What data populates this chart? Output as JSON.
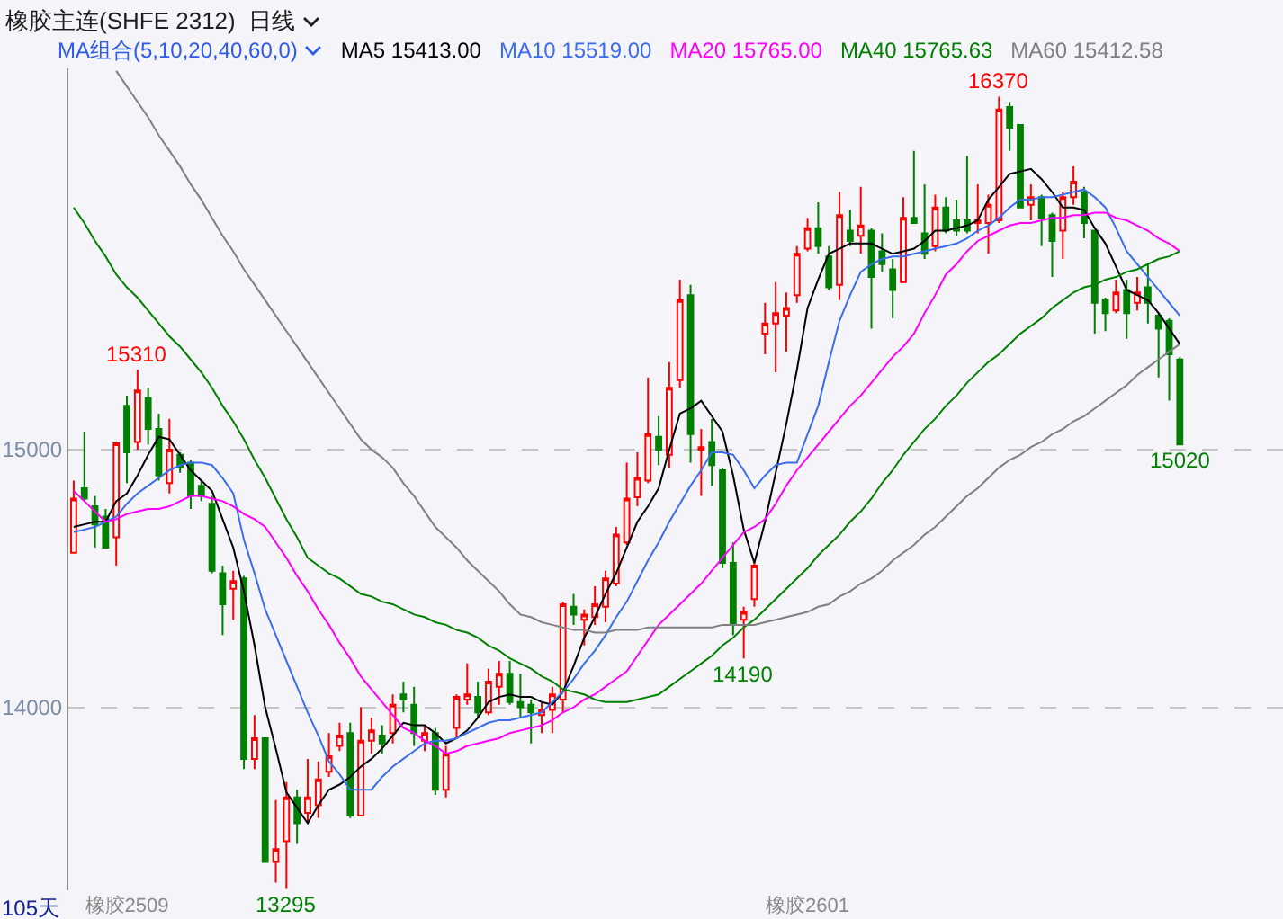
{
  "chart_data": {
    "type": "candlestick",
    "title": "橡胶主连(SHFE 2312)",
    "subtitle": "日线",
    "legend_title": "MA组合(5,10,20,40,60,0)",
    "legend": "top",
    "grid": "y",
    "categories": [
      null,
      null,
      null,
      null,
      null,
      "橡胶2509",
      null,
      null,
      null,
      null,
      null,
      null,
      null,
      null,
      null,
      null,
      null,
      null,
      null,
      null,
      null,
      null,
      null,
      null,
      null,
      null,
      null,
      null,
      null,
      null,
      null,
      null,
      null,
      null,
      null,
      null,
      null,
      null,
      null,
      null,
      null,
      null,
      null,
      null,
      null,
      null,
      null,
      null,
      null,
      null,
      null,
      null,
      null,
      null,
      null,
      null,
      null,
      null,
      null,
      null,
      null,
      null,
      null,
      null,
      null,
      null,
      null,
      null,
      null,
      "橡胶2601",
      null,
      null,
      null,
      null,
      null,
      null,
      null,
      null,
      null,
      null,
      null,
      null,
      null,
      null,
      null,
      null,
      null,
      null,
      null,
      null,
      null,
      null,
      null,
      null,
      null,
      null,
      null,
      null,
      null,
      null,
      null,
      null,
      null,
      null,
      null
    ],
    "ylim": [
      13290,
      16480
    ],
    "yticks": [
      14000,
      15000
    ],
    "ohlc": [
      [
        14600,
        14880,
        14600,
        14810
      ],
      [
        14850,
        15070,
        14800,
        14810
      ],
      [
        14780,
        14820,
        14620,
        14710
      ],
      [
        14740,
        14770,
        14620,
        14620
      ],
      [
        14660,
        15030,
        14550,
        15025
      ],
      [
        15170,
        15210,
        14870,
        14990
      ],
      [
        15030,
        15310,
        15000,
        15230
      ],
      [
        15200,
        15240,
        15020,
        15080
      ],
      [
        15080,
        15140,
        14880,
        14900
      ],
      [
        14870,
        15120,
        14830,
        15000
      ],
      [
        14980,
        14990,
        14910,
        14930
      ],
      [
        14950,
        14960,
        14770,
        14820
      ],
      [
        14860,
        14880,
        14800,
        14820
      ],
      [
        14790,
        14820,
        14520,
        14530
      ],
      [
        14520,
        14550,
        14280,
        14400
      ],
      [
        14460,
        14530,
        14340,
        14490
      ],
      [
        14500,
        14510,
        13760,
        13800
      ],
      [
        13800,
        13970,
        13760,
        13880
      ],
      [
        13880,
        13880,
        13400,
        13400
      ],
      [
        13400,
        13640,
        13320,
        13450
      ],
      [
        13480,
        13710,
        13295,
        13650
      ],
      [
        13650,
        13680,
        13470,
        13550
      ],
      [
        13590,
        13800,
        13550,
        13650
      ],
      [
        13620,
        13790,
        13570,
        13720
      ],
      [
        13750,
        13900,
        13730,
        13810
      ],
      [
        13850,
        13940,
        13830,
        13890
      ],
      [
        13900,
        13940,
        13570,
        13580
      ],
      [
        13580,
        14000,
        13580,
        13870
      ],
      [
        13870,
        13960,
        13820,
        13910
      ],
      [
        13890,
        13930,
        13820,
        13860
      ],
      [
        13900,
        14050,
        13860,
        14010
      ],
      [
        14050,
        14100,
        13980,
        14030
      ],
      [
        14010,
        14080,
        13850,
        13900
      ],
      [
        13870,
        13930,
        13830,
        13900
      ],
      [
        13900,
        13920,
        13660,
        13680
      ],
      [
        13680,
        13850,
        13650,
        13820
      ],
      [
        13920,
        14050,
        13880,
        14040
      ],
      [
        14030,
        14170,
        14010,
        14050
      ],
      [
        14040,
        14100,
        13960,
        13980
      ],
      [
        13980,
        14150,
        13970,
        14100
      ],
      [
        14080,
        14180,
        14010,
        14130
      ],
      [
        14130,
        14180,
        14010,
        14020
      ],
      [
        14020,
        14130,
        13960,
        14000
      ],
      [
        14010,
        14030,
        13860,
        13980
      ],
      [
        13970,
        14020,
        13900,
        13990
      ],
      [
        13990,
        14080,
        13900,
        14050
      ],
      [
        14030,
        14410,
        13980,
        14400
      ],
      [
        14390,
        14440,
        14320,
        14360
      ],
      [
        14340,
        14380,
        14240,
        14360
      ],
      [
        14350,
        14470,
        14320,
        14400
      ],
      [
        14390,
        14530,
        14330,
        14500
      ],
      [
        14480,
        14700,
        14470,
        14670
      ],
      [
        14640,
        14950,
        14630,
        14810
      ],
      [
        14815,
        14990,
        14780,
        14890
      ],
      [
        14880,
        15280,
        14870,
        15060
      ],
      [
        15050,
        15130,
        14940,
        15000
      ],
      [
        14980,
        15340,
        14930,
        15240
      ],
      [
        15270,
        15660,
        15240,
        15580
      ],
      [
        15600,
        15640,
        14950,
        15060
      ],
      [
        15000,
        15080,
        14820,
        15010
      ],
      [
        15030,
        15120,
        14860,
        14940
      ],
      [
        14920,
        14930,
        14540,
        14560
      ],
      [
        14560,
        14640,
        14280,
        14320
      ],
      [
        14340,
        14390,
        14190,
        14370
      ],
      [
        14420,
        14570,
        14390,
        14550
      ],
      [
        15450,
        15570,
        15370,
        15490
      ],
      [
        15490,
        15650,
        15300,
        15530
      ],
      [
        15520,
        15610,
        15380,
        15550
      ],
      [
        15600,
        15790,
        15570,
        15760
      ],
      [
        15780,
        15900,
        15770,
        15860
      ],
      [
        15860,
        15960,
        15760,
        15790
      ],
      [
        15750,
        15790,
        15620,
        15630
      ],
      [
        15640,
        16000,
        15580,
        15910
      ],
      [
        15850,
        15930,
        15790,
        15810
      ],
      [
        15830,
        16020,
        15760,
        15870
      ],
      [
        15850,
        15860,
        15470,
        15670
      ],
      [
        15770,
        15840,
        15690,
        15720
      ],
      [
        15700,
        15740,
        15510,
        15620
      ],
      [
        15650,
        15980,
        15650,
        15900
      ],
      [
        15900,
        16160,
        15880,
        15880
      ],
      [
        15840,
        16030,
        15740,
        15760
      ],
      [
        15790,
        15990,
        15770,
        15940
      ],
      [
        15940,
        15980,
        15840,
        15850
      ],
      [
        15890,
        15970,
        15830,
        15850
      ],
      [
        15890,
        16140,
        15840,
        15850
      ],
      [
        15880,
        16030,
        15840,
        15890
      ],
      [
        15880,
        15990,
        15760,
        15950
      ],
      [
        15890,
        16370,
        15880,
        16320
      ],
      [
        16330,
        16350,
        16160,
        16250
      ],
      [
        16260,
        16260,
        15940,
        15940
      ],
      [
        15950,
        16030,
        15890,
        15980
      ],
      [
        15980,
        15990,
        15790,
        15900
      ],
      [
        15910,
        15920,
        15670,
        15810
      ],
      [
        15850,
        16000,
        15740,
        15980
      ],
      [
        15980,
        16100,
        15950,
        16040
      ],
      [
        16000,
        16020,
        15820,
        15880
      ],
      [
        15850,
        15850,
        15450,
        15570
      ],
      [
        15580,
        15590,
        15460,
        15530
      ],
      [
        15540,
        15660,
        15530,
        15610
      ],
      [
        15620,
        15660,
        15430,
        15530
      ],
      [
        15570,
        15670,
        15540,
        15610
      ],
      [
        15630,
        15720,
        15490,
        15570
      ],
      [
        15520,
        15530,
        15280,
        15470
      ],
      [
        15500,
        15510,
        15190,
        15370
      ],
      [
        15350,
        15360,
        15020,
        15020
      ]
    ],
    "colors": [
      "#ff0000",
      "#008000",
      "#008000",
      "#008000",
      "#ff0000",
      "#008000",
      "#ff0000",
      "#008000",
      "#008000",
      "#ff0000",
      "#008000",
      "#008000",
      "#008000",
      "#008000",
      "#008000",
      "#ff0000",
      "#008000",
      "#ff0000",
      "#008000",
      "#ff0000",
      "#ff0000",
      "#008000",
      "#ff0000",
      "#ff0000",
      "#ff0000",
      "#ff0000",
      "#008000",
      "#ff0000",
      "#ff0000",
      "#008000",
      "#ff0000",
      "#008000",
      "#008000",
      "#ff0000",
      "#008000",
      "#ff0000",
      "#ff0000",
      "#ff0000",
      "#008000",
      "#ff0000",
      "#ff0000",
      "#008000",
      "#008000",
      "#008000",
      "#ff0000",
      "#ff0000",
      "#ff0000",
      "#008000",
      "#ff0000",
      "#ff0000",
      "#ff0000",
      "#ff0000",
      "#ff0000",
      "#ff0000",
      "#ff0000",
      "#008000",
      "#ff0000",
      "#ff0000",
      "#008000",
      "#ff0000",
      "#008000",
      "#008000",
      "#008000",
      "#ff0000",
      "#ff0000",
      "#ff0000",
      "#ff0000",
      "#ff0000",
      "#ff0000",
      "#ff0000",
      "#008000",
      "#008000",
      "#ff0000",
      "#008000",
      "#ff0000",
      "#008000",
      "#008000",
      "#008000",
      "#ff0000",
      "#008000",
      "#008000",
      "#ff0000",
      "#008000",
      "#008000",
      "#008000",
      "#ff0000",
      "#ff0000",
      "#ff0000",
      "#008000",
      "#008000",
      "#ff0000",
      "#008000",
      "#008000",
      "#ff0000",
      "#ff0000",
      "#008000",
      "#008000",
      "#008000",
      "#ff0000",
      "#008000",
      "#ff0000",
      "#008000",
      "#008000",
      "#008000",
      "#008000"
    ],
    "series": [
      {
        "name": "MA5 15413.00",
        "type": "line",
        "color": "#000000",
        "values": [
          14700,
          14710,
          14720,
          14720,
          14800,
          14830,
          14900,
          14980,
          15050,
          15040,
          14980,
          14920,
          14880,
          14840,
          14730,
          14620,
          14450,
          14240,
          14000,
          13840,
          13670,
          13610,
          13550,
          13620,
          13680,
          13700,
          13730,
          13770,
          13800,
          13840,
          13890,
          13940,
          13930,
          13930,
          13900,
          13860,
          13880,
          13910,
          13960,
          14020,
          14040,
          14050,
          14040,
          14040,
          14020,
          14010,
          14060,
          14160,
          14270,
          14350,
          14440,
          14520,
          14620,
          14720,
          14780,
          14850,
          15000,
          15140,
          15160,
          15190,
          15130,
          15070,
          14900,
          14690,
          14560,
          14720,
          14910,
          15100,
          15310,
          15550,
          15660,
          15760,
          15780,
          15800,
          15800,
          15800,
          15780,
          15760,
          15770,
          15780,
          15810,
          15850,
          15850,
          15860,
          15870,
          15890,
          15970,
          16020,
          16070,
          16080,
          16090,
          16050,
          16000,
          15940,
          15940,
          15930,
          15860,
          15800,
          15710,
          15620,
          15600,
          15580,
          15530,
          15470,
          15410
        ]
      },
      {
        "name": "MA10 15519.00",
        "type": "line",
        "color": "#3a6df0",
        "values": [
          14680,
          14690,
          14700,
          14720,
          14740,
          14790,
          14830,
          14860,
          14890,
          14920,
          14940,
          14950,
          14950,
          14940,
          14890,
          14830,
          14650,
          14520,
          14380,
          14280,
          14180,
          14080,
          13980,
          13890,
          13790,
          13740,
          13680,
          13680,
          13680,
          13730,
          13770,
          13800,
          13830,
          13860,
          13870,
          13870,
          13880,
          13900,
          13920,
          13940,
          13950,
          13950,
          13960,
          13970,
          13980,
          14020,
          14060,
          14110,
          14170,
          14220,
          14280,
          14350,
          14410,
          14490,
          14570,
          14640,
          14720,
          14790,
          14860,
          14920,
          14990,
          14990,
          14980,
          14920,
          14850,
          14900,
          14940,
          14950,
          14950,
          15060,
          15170,
          15340,
          15500,
          15600,
          15690,
          15720,
          15740,
          15750,
          15750,
          15760,
          15770,
          15780,
          15790,
          15800,
          15820,
          15850,
          15870,
          15900,
          15940,
          15970,
          15970,
          15980,
          15980,
          15990,
          16000,
          16010,
          15980,
          15940,
          15860,
          15770,
          15720,
          15670,
          15620,
          15570,
          15520
        ]
      },
      {
        "name": "MA20 15765.00",
        "type": "line",
        "color": "#ff00ff",
        "values": [
          14840,
          14800,
          14760,
          14720,
          14730,
          14750,
          14760,
          14770,
          14770,
          14780,
          14800,
          14820,
          14820,
          14810,
          14800,
          14780,
          14750,
          14730,
          14700,
          14640,
          14580,
          14510,
          14450,
          14380,
          14320,
          14250,
          14190,
          14120,
          14070,
          14020,
          13970,
          13920,
          13900,
          13870,
          13850,
          13820,
          13830,
          13850,
          13860,
          13870,
          13880,
          13900,
          13910,
          13920,
          13930,
          13950,
          13980,
          14000,
          14030,
          14050,
          14080,
          14110,
          14140,
          14200,
          14260,
          14320,
          14360,
          14400,
          14440,
          14480,
          14530,
          14580,
          14630,
          14680,
          14700,
          14730,
          14790,
          14860,
          14920,
          14970,
          15020,
          15070,
          15120,
          15170,
          15210,
          15260,
          15310,
          15360,
          15400,
          15450,
          15530,
          15600,
          15680,
          15720,
          15770,
          15810,
          15830,
          15850,
          15870,
          15880,
          15880,
          15890,
          15900,
          15900,
          15910,
          15910,
          15920,
          15920,
          15900,
          15890,
          15870,
          15850,
          15820,
          15800,
          15770
        ]
      },
      {
        "name": "MA40 15765.63",
        "type": "line",
        "color": "#008000",
        "values": [
          15940,
          15880,
          15810,
          15750,
          15680,
          15630,
          15590,
          15540,
          15490,
          15440,
          15400,
          15350,
          15300,
          15240,
          15170,
          15110,
          15040,
          14960,
          14890,
          14810,
          14730,
          14660,
          14580,
          14550,
          14520,
          14500,
          14470,
          14440,
          14430,
          14410,
          14400,
          14380,
          14360,
          14350,
          14330,
          14320,
          14300,
          14290,
          14270,
          14240,
          14220,
          14190,
          14170,
          14150,
          14120,
          14100,
          14070,
          14060,
          14050,
          14030,
          14020,
          14020,
          14020,
          14030,
          14040,
          14050,
          14080,
          14110,
          14140,
          14170,
          14200,
          14240,
          14270,
          14310,
          14340,
          14380,
          14420,
          14460,
          14500,
          14540,
          14590,
          14630,
          14670,
          14720,
          14760,
          14810,
          14870,
          14920,
          14980,
          15030,
          15080,
          15120,
          15170,
          15210,
          15260,
          15300,
          15340,
          15370,
          15410,
          15450,
          15480,
          15510,
          15550,
          15580,
          15610,
          15630,
          15640,
          15660,
          15670,
          15690,
          15700,
          15720,
          15740,
          15750,
          15770
        ]
      },
      {
        "name": "MA60 15412.58",
        "type": "line",
        "color": "#808080",
        "values": [
          null,
          null,
          null,
          null,
          16470,
          16410,
          16350,
          16290,
          16220,
          16160,
          16100,
          16030,
          15970,
          15900,
          15830,
          15770,
          15700,
          15640,
          15580,
          15520,
          15460,
          15400,
          15340,
          15280,
          15220,
          15160,
          15100,
          15040,
          15000,
          14970,
          14930,
          14870,
          14820,
          14760,
          14700,
          14660,
          14620,
          14570,
          14530,
          14490,
          14450,
          14400,
          14360,
          14350,
          14330,
          14320,
          14310,
          14300,
          14300,
          14290,
          14290,
          14300,
          14300,
          14300,
          14310,
          14310,
          14310,
          14310,
          14310,
          14310,
          14310,
          14320,
          14320,
          14320,
          14320,
          14330,
          14340,
          14350,
          14360,
          14370,
          14390,
          14400,
          14430,
          14450,
          14480,
          14500,
          14530,
          14570,
          14600,
          14630,
          14670,
          14700,
          14740,
          14780,
          14820,
          14850,
          14890,
          14930,
          14960,
          14980,
          15010,
          15030,
          15060,
          15080,
          15110,
          15130,
          15160,
          15190,
          15220,
          15250,
          15290,
          15320,
          15350,
          15380,
          15410
        ]
      }
    ],
    "annotations": [
      {
        "text": "15310",
        "y": 15310
      },
      {
        "text": "16370",
        "y": 16370
      },
      {
        "text": "13295",
        "y": 13295
      },
      {
        "text": "14190",
        "y": 14190
      },
      {
        "text": "15020",
        "y": 15020
      },
      "105天"
    ]
  }
}
